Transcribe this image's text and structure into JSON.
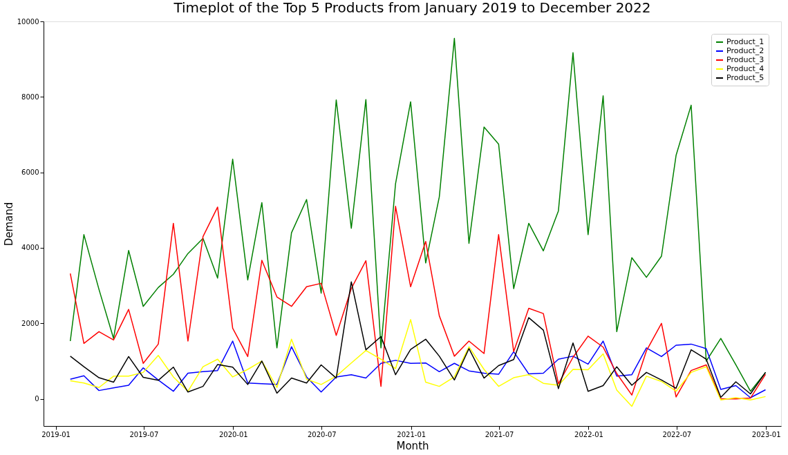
{
  "chart_data": {
    "type": "line",
    "title": "Timeplot of the Top 5 Products from January 2019 to December 2022",
    "xlabel": "Month",
    "ylabel": "Demand",
    "x": [
      "2019-01-31",
      "2019-02-28",
      "2019-03-31",
      "2019-04-30",
      "2019-05-31",
      "2019-06-30",
      "2019-07-31",
      "2019-08-31",
      "2019-09-30",
      "2019-10-31",
      "2019-11-30",
      "2019-12-31",
      "2020-01-31",
      "2020-02-29",
      "2020-03-31",
      "2020-04-30",
      "2020-05-31",
      "2020-06-30",
      "2020-07-31",
      "2020-08-31",
      "2020-09-30",
      "2020-10-31",
      "2020-11-30",
      "2020-12-31",
      "2021-01-31",
      "2021-02-28",
      "2021-03-31",
      "2021-04-30",
      "2021-05-31",
      "2021-06-30",
      "2021-07-31",
      "2021-08-31",
      "2021-09-30",
      "2021-10-31",
      "2021-11-30",
      "2021-12-31",
      "2022-01-31",
      "2022-02-28",
      "2022-03-31",
      "2022-04-30",
      "2022-05-31",
      "2022-06-30",
      "2022-07-31",
      "2022-08-31",
      "2022-09-30",
      "2022-10-31",
      "2022-11-30",
      "2022-12-31"
    ],
    "series": [
      {
        "name": "Product_1",
        "color": "#008000",
        "values": [
          1530,
          4350,
          2900,
          1600,
          3930,
          2450,
          2950,
          3300,
          3850,
          4250,
          3200,
          6350,
          3150,
          5200,
          1350,
          4400,
          5280,
          2800,
          7920,
          4520,
          7930,
          1350,
          5700,
          7870,
          3600,
          5350,
          9550,
          4120,
          7200,
          6750,
          2920,
          4650,
          3920,
          4980,
          9170,
          4350,
          8030,
          1780,
          3740,
          3220,
          3780,
          6450,
          7780,
          1000,
          1600,
          900,
          200,
          700
        ]
      },
      {
        "name": "Product_2",
        "color": "#0000ff",
        "values": [
          520,
          610,
          220,
          290,
          360,
          820,
          500,
          200,
          680,
          720,
          750,
          1530,
          420,
          400,
          380,
          1380,
          580,
          180,
          580,
          640,
          550,
          940,
          1020,
          940,
          950,
          720,
          940,
          740,
          680,
          650,
          1250,
          660,
          680,
          1050,
          1130,
          920,
          1530,
          600,
          640,
          1350,
          1120,
          1420,
          1450,
          1330,
          250,
          350,
          30,
          240
        ]
      },
      {
        "name": "Product_3",
        "color": "#ff0000",
        "values": [
          3320,
          1470,
          1780,
          1560,
          2370,
          940,
          1450,
          4650,
          1530,
          4300,
          5080,
          1870,
          1120,
          3670,
          2700,
          2450,
          2970,
          3060,
          1680,
          2920,
          3660,
          330,
          5100,
          2970,
          4170,
          2200,
          1130,
          1530,
          1200,
          4350,
          1250,
          2400,
          2260,
          400,
          1100,
          1660,
          1370,
          670,
          100,
          1270,
          2000,
          50,
          750,
          900,
          0,
          0,
          20,
          650
        ]
      },
      {
        "name": "Product_4",
        "color": "#ffff00",
        "values": [
          480,
          420,
          300,
          600,
          600,
          700,
          1150,
          580,
          200,
          850,
          1050,
          580,
          780,
          1000,
          300,
          1580,
          520,
          380,
          600,
          950,
          1280,
          1050,
          800,
          2100,
          440,
          330,
          580,
          1380,
          780,
          330,
          560,
          640,
          410,
          360,
          780,
          770,
          1190,
          230,
          -200,
          600,
          460,
          200,
          700,
          850,
          -30,
          30,
          -30,
          60
        ]
      },
      {
        "name": "Product_5",
        "color": "#000000",
        "values": [
          1130,
          850,
          560,
          440,
          1120,
          570,
          490,
          840,
          180,
          330,
          910,
          840,
          380,
          1000,
          150,
          550,
          420,
          900,
          550,
          3100,
          1300,
          1650,
          640,
          1310,
          1580,
          1130,
          500,
          1330,
          550,
          880,
          1040,
          2150,
          1820,
          270,
          1480,
          200,
          350,
          850,
          360,
          700,
          500,
          280,
          1300,
          1050,
          40,
          450,
          130,
          700
        ]
      }
    ],
    "xlim": [
      "2018-12-07",
      "2023-02-01"
    ],
    "xticks": [
      "2019-01",
      "2019-07",
      "2020-01",
      "2020-07",
      "2021-01",
      "2021-07",
      "2022-01",
      "2022-07",
      "2023-01"
    ],
    "ylim": [
      -720,
      10000
    ],
    "yticks": [
      0,
      2000,
      4000,
      6000,
      8000,
      10000
    ],
    "grid": false,
    "legend": "top right",
    "line_style": "solid"
  }
}
